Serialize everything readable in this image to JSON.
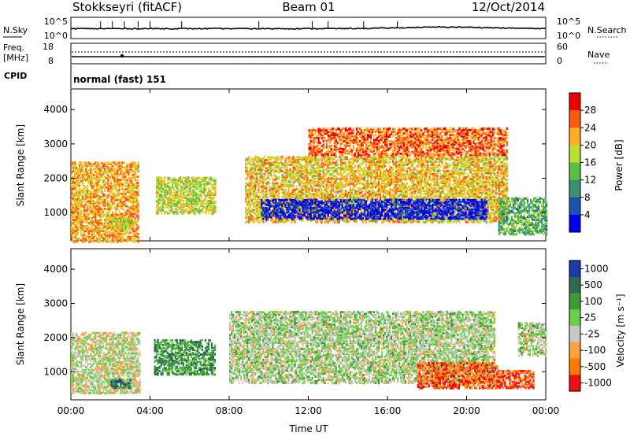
{
  "header": {
    "station": "Stokkseyri (fitACF)",
    "beam": "Beam 01",
    "date": "12/Oct/2014"
  },
  "noise_panel": {
    "left_label": "N.Sky",
    "left_ticks": [
      "10^5",
      "10^0"
    ],
    "right_ticks": [
      "10^5",
      "10^0"
    ],
    "right_label": "N.Search"
  },
  "freq_panel": {
    "left_label_line1": "Freq.",
    "left_label_line2": "[MHz]",
    "left_ticks": [
      "18",
      "8"
    ],
    "right_ticks": [
      "60",
      "0"
    ],
    "right_label": "Nave"
  },
  "cpid_panel": {
    "label": "CPID",
    "value": "normal (fast) 151"
  },
  "chart_data": [
    {
      "type": "heatmap",
      "title": "",
      "ylabel": "Slant Range [km]",
      "ylim": [
        180,
        4600
      ],
      "yticks": [
        "4000",
        "3000",
        "2000",
        "1000"
      ],
      "colorbar_label": "Power [dB]",
      "colorbar_ticks": [
        "28",
        "24",
        "20",
        "16",
        "12",
        "8",
        "4"
      ],
      "colorbar_colors": [
        "#0000ee",
        "#1e50b0",
        "#3a9070",
        "#5cc048",
        "#bede30",
        "#ffb020",
        "#ff5a10",
        "#ee0000"
      ],
      "scatter_regions": [
        {
          "t0": 0.0,
          "t1": 3.4,
          "r0": 180,
          "r1": 2500,
          "level": 0.3
        },
        {
          "t0": 2.0,
          "t1": 3.0,
          "r0": 550,
          "r1": 900,
          "level": 0.45
        },
        {
          "t0": 4.3,
          "t1": 7.3,
          "r0": 1000,
          "r1": 2100,
          "level": 0.45
        },
        {
          "t0": 8.8,
          "t1": 22.0,
          "r0": 750,
          "r1": 2700,
          "level": 0.35
        },
        {
          "t0": 9.6,
          "t1": 21.0,
          "r0": 850,
          "r1": 1450,
          "level": 0.92
        },
        {
          "t0": 21.6,
          "t1": 24.0,
          "r0": 400,
          "r1": 1500,
          "level": 0.6
        },
        {
          "t0": 12.0,
          "t1": 22.0,
          "r0": 2700,
          "r1": 3500,
          "level": 0.2
        }
      ]
    },
    {
      "type": "heatmap",
      "title": "",
      "xlabel": "Time UT",
      "ylabel": "Slant Range [km]",
      "xticks": [
        "00:00",
        "04:00",
        "08:00",
        "12:00",
        "16:00",
        "20:00",
        "00:00"
      ],
      "ylim": [
        180,
        4600
      ],
      "yticks": [
        "4000",
        "3000",
        "2000",
        "1000"
      ],
      "colorbar_label": "Velocity [m s⁻¹]",
      "colorbar_ticks": [
        "1000",
        "500",
        "100",
        "25",
        "-25",
        "-100",
        "-500",
        "-1000"
      ],
      "colorbar_colors": [
        "#1a3aa8",
        "#2e6a50",
        "#3f9a3a",
        "#6ad04a",
        "#c8c8c4",
        "#ffa040",
        "#ff7a00",
        "#ee1010"
      ],
      "scatter_regions": [
        {
          "t0": 0.0,
          "t1": 3.5,
          "r0": 400,
          "r1": 2200,
          "level": 0.55
        },
        {
          "t0": 2.0,
          "t1": 3.0,
          "r0": 550,
          "r1": 800,
          "level": 0.2
        },
        {
          "t0": 4.2,
          "t1": 7.3,
          "r0": 950,
          "r1": 2000,
          "level": 0.3
        },
        {
          "t0": 8.0,
          "t1": 21.4,
          "r0": 700,
          "r1": 2800,
          "level": 0.5
        },
        {
          "t0": 17.5,
          "t1": 21.5,
          "r0": 550,
          "r1": 1300,
          "level": 0.85
        },
        {
          "t0": 21.5,
          "t1": 23.4,
          "r0": 550,
          "r1": 1100,
          "level": 0.85
        },
        {
          "t0": 22.6,
          "t1": 24.0,
          "r0": 1500,
          "r1": 2500,
          "level": 0.5
        }
      ]
    }
  ]
}
